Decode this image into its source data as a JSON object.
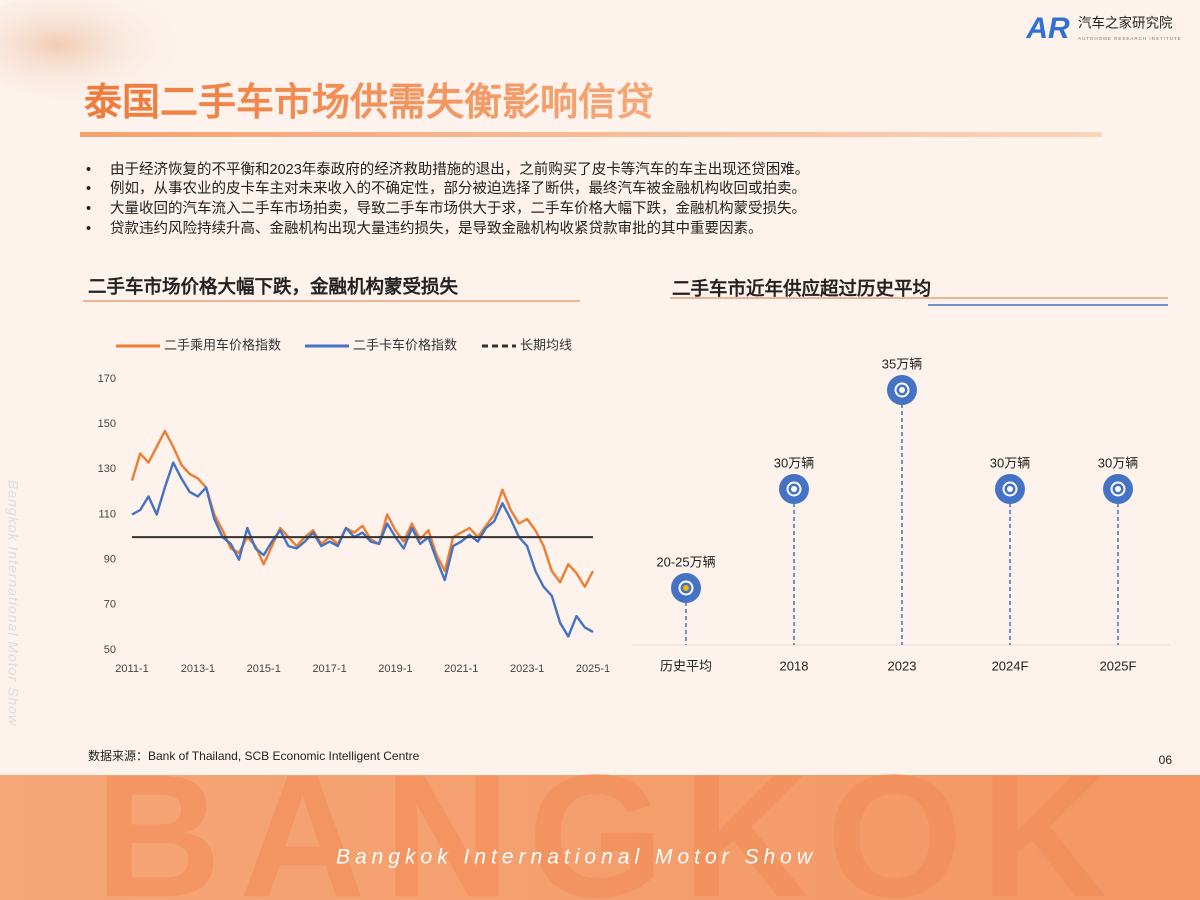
{
  "logo": {
    "mark": "AR",
    "name": "汽车之家研究院",
    "tagline": "AUTOHOME RESEARCH INSTITUTE"
  },
  "title": "泰国二手车市场供需失衡影响信贷",
  "bullets": [
    "由于经济恢复的不平衡和2023年泰政府的经济救助措施的退出，之前购买了皮卡等汽车的车主出现还贷困难。",
    "例如，从事农业的皮卡车主对未来收入的不确定性，部分被迫选择了断供，最终汽车被金融机构收回或拍卖。",
    "大量收回的汽车流入二手车市场拍卖，导致二手车市场供大于求，二手车价格大幅下跌，金融机构蒙受损失。",
    "贷款违约风险持续升高、金融机构出现大量违约损失，是导致金融机构收紧贷款审批的其中重要因素。"
  ],
  "chart_data": [
    {
      "type": "line",
      "title": "二手车市场价格大幅下跌，金融机构蒙受损失",
      "categories": [
        "2011-1",
        null,
        null,
        null,
        null,
        null,
        null,
        null,
        "2013-1",
        null,
        null,
        null,
        null,
        null,
        null,
        null,
        "2015-1",
        null,
        null,
        null,
        null,
        null,
        null,
        null,
        "2017-1",
        null,
        null,
        null,
        null,
        null,
        null,
        null,
        "2019-1",
        null,
        null,
        null,
        null,
        null,
        null,
        null,
        "2021-1",
        null,
        null,
        null,
        null,
        null,
        null,
        null,
        "2023-1",
        null,
        null,
        null,
        null,
        null,
        null,
        null,
        "2025-1"
      ],
      "series": [
        {
          "name": "二手乘用车价格指数",
          "color": "#ed7d31",
          "values": [
            125,
            137,
            133,
            140,
            147,
            140,
            132,
            128,
            126,
            122,
            110,
            103,
            95,
            93,
            100,
            96,
            88,
            96,
            104,
            100,
            96,
            100,
            103,
            97,
            100,
            97,
            104,
            102,
            105,
            99,
            97,
            110,
            103,
            98,
            106,
            99,
            103,
            92,
            85,
            100,
            102,
            104,
            100,
            105,
            110,
            121,
            112,
            106,
            108,
            103,
            96,
            85,
            80,
            88,
            84,
            78,
            85
          ]
        },
        {
          "name": "二手卡车价格指数",
          "color": "#4472c4",
          "values": [
            110,
            112,
            118,
            110,
            122,
            133,
            126,
            120,
            118,
            122,
            108,
            100,
            97,
            90,
            104,
            95,
            92,
            98,
            103,
            96,
            95,
            98,
            102,
            96,
            98,
            96,
            104,
            100,
            102,
            98,
            97,
            106,
            100,
            95,
            104,
            97,
            100,
            90,
            81,
            96,
            98,
            101,
            98,
            104,
            107,
            115,
            108,
            100,
            96,
            85,
            78,
            74,
            62,
            56,
            65,
            60,
            58
          ]
        }
      ],
      "reference_line": {
        "name": "长期均线",
        "value": 100,
        "color": "#333333"
      },
      "ylim": [
        50,
        170
      ],
      "yticks": [
        50,
        70,
        90,
        110,
        130,
        150,
        170
      ],
      "grid": false,
      "legend": "top"
    },
    {
      "type": "dot",
      "title": "二手车市近年供应超过历史平均",
      "categories": [
        "历史平均",
        "2018",
        "2023",
        "2024F",
        "2025F"
      ],
      "values": [
        25,
        30,
        35,
        30,
        30
      ],
      "value_labels": [
        "20-25万辆",
        "30万辆",
        "35万辆",
        "30万辆",
        "30万辆"
      ],
      "color": "#4472c4",
      "center_colors": [
        "#f5b800",
        "#ffffff",
        "#ffffff",
        "#ffffff",
        "#ffffff"
      ]
    }
  ],
  "source": "数据来源：Bank of Thailand, SCB Economic Intelligent Centre",
  "page_number": "06",
  "footer": {
    "watermark": "BANGKOK",
    "event": "Bangkok International Motor Show"
  },
  "side_text": "Bangkok International Motor Show"
}
